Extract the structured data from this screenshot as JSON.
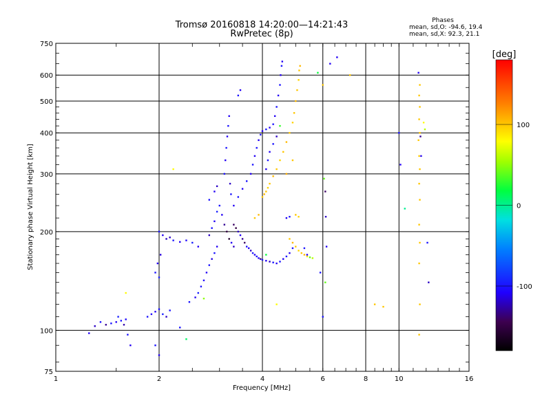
{
  "chart_data": {
    "type": "scatter",
    "title": "Tromsø 20160818 14:20:00—14:21:43",
    "subtitle": "RwPretec (8p)",
    "phases": {
      "heading": "Phases",
      "line_o": "mean, sd,O: -94.6, 19.4",
      "line_x": "mean, sd,X: 92.3, 21.1"
    },
    "xlabel": "Frequency [MHz]",
    "ylabel": "Stationary phase Virtual Height [km]",
    "xscale": "log",
    "yscale": "log",
    "xlim": [
      1,
      16
    ],
    "ylim": [
      75,
      750
    ],
    "grid": true,
    "xticks": [
      1,
      2,
      4,
      6,
      8,
      10,
      16
    ],
    "xtick_labels": [
      "1",
      "2",
      "4",
      "6",
      "8",
      "10",
      "16"
    ],
    "yticks": [
      75,
      100,
      200,
      300,
      400,
      500,
      600,
      750
    ],
    "ytick_labels": [
      "75",
      "100",
      "200",
      "300",
      "400",
      "500",
      "600",
      "750"
    ],
    "colorbar": {
      "label": "[deg]",
      "range": [
        -180,
        180
      ],
      "ticks": [
        100,
        0,
        -100
      ],
      "tick_labels": [
        "100",
        "0",
        "-100"
      ]
    },
    "series": [
      {
        "points": [
          [
            1.25,
            98,
            -110
          ],
          [
            1.3,
            103,
            -120
          ],
          [
            1.35,
            106,
            -100
          ],
          [
            1.4,
            104,
            -130
          ],
          [
            1.45,
            105,
            -100
          ],
          [
            1.5,
            106,
            -110
          ],
          [
            1.55,
            107,
            -100
          ],
          [
            1.6,
            108,
            -105
          ],
          [
            1.52,
            110,
            -95
          ],
          [
            1.58,
            104,
            -125
          ],
          [
            1.62,
            97,
            -100
          ],
          [
            1.65,
            90,
            -110
          ],
          [
            1.85,
            110,
            -100
          ],
          [
            1.9,
            112,
            -105
          ],
          [
            1.95,
            114,
            -110
          ],
          [
            2.0,
            116,
            -100
          ],
          [
            2.05,
            112,
            -95
          ],
          [
            2.1,
            110,
            -120
          ],
          [
            2.15,
            115,
            -100
          ],
          [
            1.95,
            150,
            -100
          ],
          [
            1.98,
            160,
            -110
          ],
          [
            2.0,
            145,
            -95
          ],
          [
            2.02,
            170,
            -115
          ],
          [
            2.0,
            200,
            -100
          ],
          [
            2.05,
            195,
            -110
          ],
          [
            2.1,
            190,
            -120
          ],
          [
            2.2,
            188,
            -100
          ],
          [
            2.3,
            186,
            -110
          ],
          [
            2.4,
            188,
            -105
          ],
          [
            2.5,
            185,
            -95
          ],
          [
            2.15,
            192,
            -120
          ],
          [
            2.45,
            122,
            -100
          ],
          [
            2.55,
            126,
            -110
          ],
          [
            2.6,
            130,
            -95
          ],
          [
            2.65,
            136,
            -100
          ],
          [
            2.7,
            142,
            -105
          ],
          [
            2.75,
            150,
            -110
          ],
          [
            2.8,
            158,
            -100
          ],
          [
            2.85,
            165,
            -115
          ],
          [
            2.9,
            172,
            -100
          ],
          [
            2.95,
            180,
            -110
          ],
          [
            2.8,
            195,
            -120
          ],
          [
            2.85,
            205,
            -100
          ],
          [
            2.9,
            215,
            -110
          ],
          [
            2.95,
            230,
            -95
          ],
          [
            2.8,
            250,
            -100
          ],
          [
            2.9,
            265,
            -110
          ],
          [
            2.95,
            275,
            -120
          ],
          [
            3.0,
            240,
            -100
          ],
          [
            3.05,
            225,
            -110
          ],
          [
            3.1,
            210,
            -130
          ],
          [
            3.15,
            200,
            -150
          ],
          [
            3.2,
            190,
            -160
          ],
          [
            3.25,
            185,
            -110
          ],
          [
            3.3,
            180,
            -120
          ],
          [
            3.1,
            300,
            -100
          ],
          [
            3.12,
            330,
            -110
          ],
          [
            3.14,
            360,
            -100
          ],
          [
            3.16,
            390,
            -110
          ],
          [
            3.18,
            420,
            -100
          ],
          [
            3.2,
            450,
            -110
          ],
          [
            3.22,
            280,
            -120
          ],
          [
            3.24,
            260,
            -100
          ],
          [
            3.3,
            210,
            -140
          ],
          [
            3.35,
            205,
            -150
          ],
          [
            3.4,
            200,
            -120
          ],
          [
            3.45,
            195,
            -110
          ],
          [
            3.5,
            190,
            -130
          ],
          [
            3.55,
            185,
            -140
          ],
          [
            3.6,
            180,
            -100
          ],
          [
            3.65,
            178,
            -110
          ],
          [
            3.7,
            175,
            -120
          ],
          [
            3.75,
            172,
            -100
          ],
          [
            3.8,
            170,
            -110
          ],
          [
            3.85,
            168,
            -100
          ],
          [
            3.9,
            166,
            -110
          ],
          [
            3.95,
            165,
            -130
          ],
          [
            4.0,
            164,
            -100
          ],
          [
            4.1,
            163,
            -110
          ],
          [
            4.2,
            162,
            -120
          ],
          [
            4.3,
            161,
            -100
          ],
          [
            4.4,
            160,
            -110
          ],
          [
            4.5,
            162,
            -100
          ],
          [
            4.6,
            165,
            -110
          ],
          [
            4.7,
            168,
            -100
          ],
          [
            4.8,
            172,
            -110
          ],
          [
            4.9,
            178,
            -100
          ],
          [
            3.3,
            240,
            -110
          ],
          [
            3.4,
            255,
            -100
          ],
          [
            3.5,
            270,
            -110
          ],
          [
            3.6,
            285,
            -100
          ],
          [
            3.7,
            300,
            -110
          ],
          [
            3.75,
            320,
            -100
          ],
          [
            3.8,
            340,
            -110
          ],
          [
            3.85,
            360,
            -100
          ],
          [
            3.9,
            380,
            -110
          ],
          [
            3.95,
            395,
            -100
          ],
          [
            4.0,
            405,
            -110
          ],
          [
            4.1,
            410,
            -100
          ],
          [
            4.2,
            415,
            -110
          ],
          [
            4.3,
            425,
            -100
          ],
          [
            4.35,
            450,
            -110
          ],
          [
            4.4,
            480,
            -100
          ],
          [
            4.45,
            520,
            -110
          ],
          [
            4.5,
            560,
            -100
          ],
          [
            4.52,
            600,
            -110
          ],
          [
            4.55,
            640,
            -100
          ],
          [
            4.57,
            660,
            -110
          ],
          [
            4.4,
            390,
            -120
          ],
          [
            4.3,
            370,
            -100
          ],
          [
            4.2,
            350,
            -110
          ],
          [
            4.15,
            330,
            -100
          ],
          [
            4.1,
            310,
            -110
          ],
          [
            3.4,
            520,
            -100
          ],
          [
            3.45,
            540,
            -110
          ],
          [
            4.0,
            255,
            100
          ],
          [
            4.05,
            260,
            105
          ],
          [
            4.1,
            265,
            100
          ],
          [
            4.15,
            272,
            95
          ],
          [
            4.2,
            280,
            100
          ],
          [
            4.3,
            295,
            105
          ],
          [
            4.4,
            310,
            100
          ],
          [
            4.5,
            330,
            95
          ],
          [
            4.6,
            350,
            100
          ],
          [
            4.7,
            375,
            105
          ],
          [
            4.8,
            400,
            100
          ],
          [
            4.9,
            430,
            95
          ],
          [
            4.95,
            460,
            100
          ],
          [
            5.0,
            500,
            105
          ],
          [
            5.05,
            540,
            100
          ],
          [
            5.1,
            580,
            95
          ],
          [
            5.12,
            620,
            100
          ],
          [
            5.15,
            640,
            105
          ],
          [
            4.7,
            300,
            110
          ],
          [
            4.9,
            330,
            100
          ],
          [
            4.8,
            190,
            100
          ],
          [
            4.9,
            185,
            105
          ],
          [
            5.0,
            180,
            100
          ],
          [
            5.1,
            175,
            95
          ],
          [
            5.2,
            172,
            100
          ],
          [
            5.3,
            170,
            105
          ],
          [
            5.4,
            168,
            90
          ],
          [
            5.5,
            167,
            40
          ],
          [
            5.6,
            166,
            60
          ],
          [
            5.0,
            225,
            100
          ],
          [
            5.1,
            222,
            95
          ],
          [
            4.7,
            220,
            -110
          ],
          [
            4.8,
            222,
            -100
          ],
          [
            5.3,
            178,
            -100
          ],
          [
            5.4,
            170,
            -110
          ],
          [
            3.8,
            220,
            100
          ],
          [
            3.9,
            225,
            105
          ],
          [
            6.0,
            110,
            -100
          ],
          [
            6.05,
            290,
            40
          ],
          [
            6.1,
            265,
            -140
          ],
          [
            6.12,
            222,
            -120
          ],
          [
            6.15,
            180,
            -110
          ],
          [
            6.1,
            140,
            40
          ],
          [
            5.9,
            150,
            -100
          ],
          [
            6.3,
            650,
            -110
          ],
          [
            6.6,
            680,
            -110
          ],
          [
            6.0,
            560,
            100
          ],
          [
            5.8,
            610,
            20
          ],
          [
            7.2,
            600,
            100
          ],
          [
            10.0,
            400,
            -100
          ],
          [
            10.1,
            320,
            -110
          ],
          [
            10.4,
            235,
            0
          ],
          [
            11.4,
            610,
            -110
          ],
          [
            11.5,
            560,
            100
          ],
          [
            11.45,
            520,
            100
          ],
          [
            11.5,
            480,
            100
          ],
          [
            11.45,
            440,
            100
          ],
          [
            11.5,
            400,
            100
          ],
          [
            11.4,
            380,
            100
          ],
          [
            11.45,
            340,
            100
          ],
          [
            11.5,
            310,
            100
          ],
          [
            11.45,
            280,
            100
          ],
          [
            11.5,
            250,
            100
          ],
          [
            11.45,
            210,
            100
          ],
          [
            11.5,
            185,
            100
          ],
          [
            11.45,
            160,
            100
          ],
          [
            11.5,
            120,
            100
          ],
          [
            11.45,
            97,
            100
          ],
          [
            11.6,
            340,
            -110
          ],
          [
            11.55,
            390,
            -130
          ],
          [
            11.8,
            430,
            80
          ],
          [
            11.9,
            410,
            60
          ],
          [
            12.1,
            185,
            -100
          ],
          [
            12.2,
            140,
            -120
          ],
          [
            8.5,
            120,
            100
          ],
          [
            9.0,
            118,
            100
          ],
          [
            1.6,
            130,
            80
          ],
          [
            2.2,
            310,
            80
          ],
          [
            1.95,
            90,
            -100
          ],
          [
            2.0,
            84,
            -110
          ],
          [
            2.4,
            94,
            10
          ],
          [
            2.3,
            102,
            -100
          ],
          [
            2.6,
            180,
            -110
          ],
          [
            2.7,
            125,
            50
          ],
          [
            4.4,
            120,
            80
          ],
          [
            4.1,
            170,
            20
          ],
          [
            4.5,
            420,
            30
          ]
        ]
      }
    ]
  }
}
